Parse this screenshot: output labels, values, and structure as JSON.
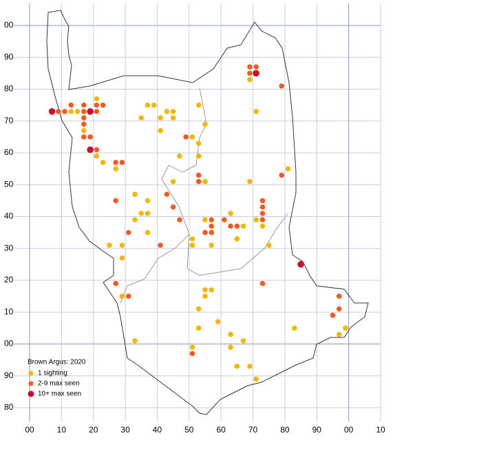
{
  "map": {
    "title": "Brown Argus:  2020",
    "xticks": [
      {
        "value": 0,
        "label": "00"
      },
      10,
      20,
      30,
      40,
      50,
      60,
      70,
      80,
      90,
      {
        "value": 100,
        "label": "00"
      },
      {
        "value": 110,
        "label": "10"
      }
    ],
    "yticks": [
      {
        "value": 100,
        "label": "00"
      },
      90,
      80,
      70,
      60,
      50,
      40,
      30,
      20,
      10,
      {
        "value": 0,
        "label": "00"
      },
      {
        "value": -10,
        "label": "90"
      },
      {
        "value": -20,
        "label": "80"
      }
    ],
    "xlim": [
      0,
      110
    ],
    "ylim": [
      -20,
      100
    ],
    "groups": [
      {
        "name": "1 sighting",
        "color": "#f2b705",
        "points": [
          [
            13,
            73
          ],
          [
            15,
            73
          ],
          [
            21,
            77
          ],
          [
            17,
            67
          ],
          [
            21,
            59
          ],
          [
            23,
            57
          ],
          [
            27,
            55
          ],
          [
            25,
            31
          ],
          [
            29,
            31
          ],
          [
            29,
            27
          ],
          [
            29,
            15
          ],
          [
            33,
            47
          ],
          [
            33,
            39
          ],
          [
            35,
            41
          ],
          [
            37,
            45
          ],
          [
            37,
            41
          ],
          [
            37,
            35
          ],
          [
            35,
            71
          ],
          [
            37,
            75
          ],
          [
            39,
            75
          ],
          [
            41,
            71
          ],
          [
            43,
            73
          ],
          [
            45,
            73
          ],
          [
            45,
            71
          ],
          [
            41,
            67
          ],
          [
            45,
            51
          ],
          [
            47,
            59
          ],
          [
            51,
            65
          ],
          [
            53,
            75
          ],
          [
            55,
            69
          ],
          [
            53,
            63
          ],
          [
            53,
            59
          ],
          [
            53,
            51
          ],
          [
            55,
            51
          ],
          [
            51,
            33
          ],
          [
            51,
            31
          ],
          [
            55,
            39
          ],
          [
            57,
            31
          ],
          [
            63,
            41
          ],
          [
            67,
            37
          ],
          [
            65,
            33
          ],
          [
            69,
            83
          ],
          [
            71,
            73
          ],
          [
            69,
            51
          ],
          [
            71,
            39
          ],
          [
            73,
            37
          ],
          [
            75,
            31
          ],
          [
            81,
            55
          ],
          [
            55,
            17
          ],
          [
            57,
            17
          ],
          [
            55,
            15
          ],
          [
            53,
            11
          ],
          [
            59,
            7
          ],
          [
            53,
            5
          ],
          [
            63,
            3
          ],
          [
            67,
            1
          ],
          [
            63,
            -1
          ],
          [
            51,
            -1
          ],
          [
            33,
            1
          ],
          [
            65,
            -7
          ],
          [
            69,
            -7
          ],
          [
            71,
            -11
          ],
          [
            83,
            5
          ],
          [
            97,
            3
          ],
          [
            99,
            5
          ]
        ]
      },
      {
        "name": "2-9 max seen",
        "color": "#f05a23",
        "points": [
          [
            9,
            73
          ],
          [
            11,
            73
          ],
          [
            13,
            75
          ],
          [
            17,
            75
          ],
          [
            17,
            73
          ],
          [
            17,
            71
          ],
          [
            17,
            69
          ],
          [
            17,
            65
          ],
          [
            19,
            65
          ],
          [
            21,
            75
          ],
          [
            23,
            75
          ],
          [
            21,
            73
          ],
          [
            21,
            61
          ],
          [
            27,
            57
          ],
          [
            29,
            57
          ],
          [
            27,
            45
          ],
          [
            31,
            35
          ],
          [
            27,
            19
          ],
          [
            31,
            15
          ],
          [
            43,
            47
          ],
          [
            45,
            43
          ],
          [
            47,
            39
          ],
          [
            41,
            31
          ],
          [
            49,
            65
          ],
          [
            53,
            53
          ],
          [
            53,
            51
          ],
          [
            57,
            39
          ],
          [
            57,
            37
          ],
          [
            55,
            35
          ],
          [
            57,
            35
          ],
          [
            61,
            39
          ],
          [
            63,
            37
          ],
          [
            65,
            37
          ],
          [
            69,
            87
          ],
          [
            71,
            87
          ],
          [
            69,
            85
          ],
          [
            79,
            81
          ],
          [
            73,
            45
          ],
          [
            73,
            43
          ],
          [
            73,
            41
          ],
          [
            73,
            39
          ],
          [
            79,
            53
          ],
          [
            73,
            19
          ],
          [
            97,
            15
          ],
          [
            97,
            11
          ],
          [
            95,
            9
          ],
          [
            51,
            -3
          ]
        ]
      },
      {
        "name": "10+ max seen",
        "color": "#c8102e",
        "points": [
          [
            7,
            73
          ],
          [
            19,
            73
          ],
          [
            19,
            61
          ],
          [
            71,
            85
          ],
          [
            85,
            25
          ]
        ]
      }
    ]
  }
}
